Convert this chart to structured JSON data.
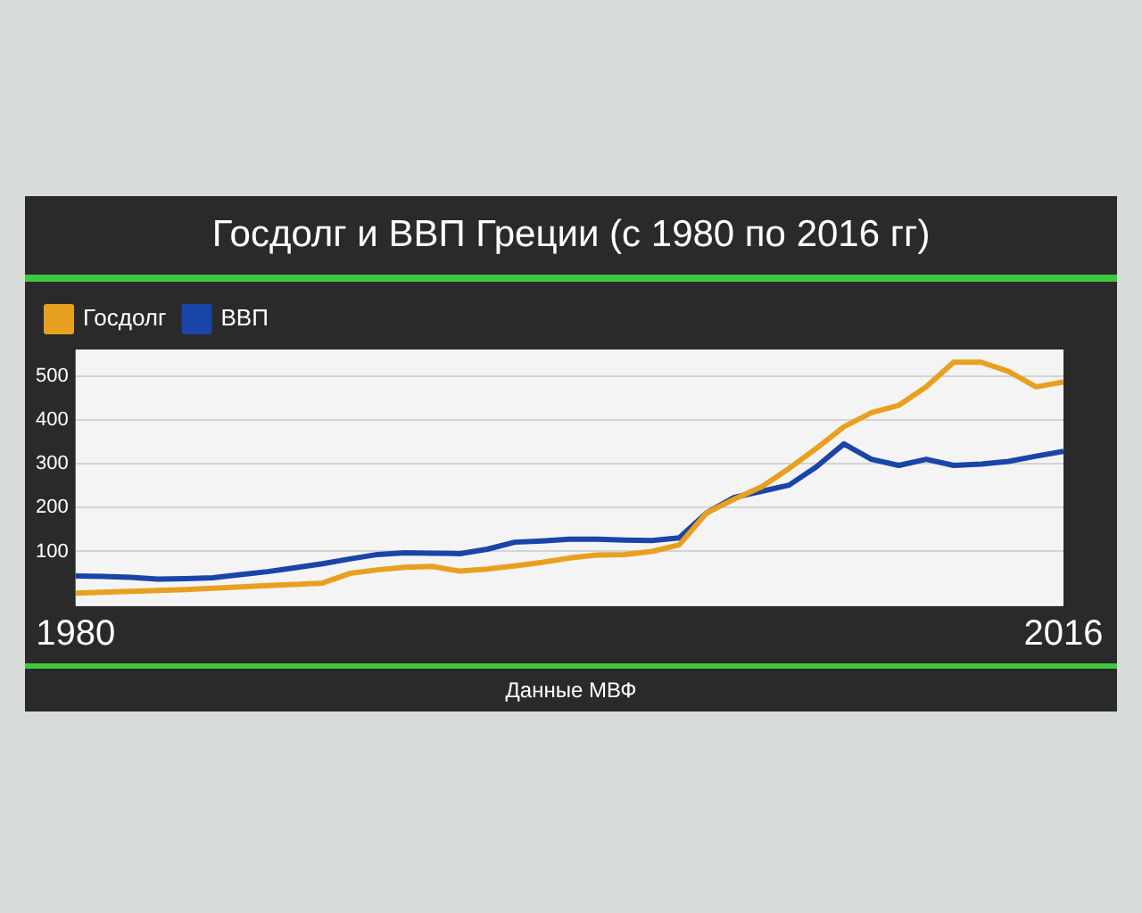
{
  "chart_data": {
    "type": "line",
    "title": "Госдолг и ВВП Греции (с 1980 по 2016 гг)",
    "annotations": [
      "Данные МВФ"
    ],
    "x": [
      1980,
      1981,
      1982,
      1983,
      1984,
      1985,
      1986,
      1987,
      1988,
      1989,
      1990,
      1991,
      1992,
      1993,
      1994,
      1995,
      1996,
      1997,
      1998,
      1999,
      2000,
      2001,
      2002,
      2003,
      2004,
      2005,
      2006,
      2007,
      2008,
      2009,
      2010,
      2011,
      2012,
      2013,
      2014,
      2015,
      2016
    ],
    "series": [
      {
        "name": "Госдолг",
        "color": "#e8a020",
        "values": [
          5,
          7,
          9,
          11,
          13,
          16,
          19,
          22,
          25,
          28,
          50,
          58,
          64,
          66,
          55,
          60,
          67,
          75,
          85,
          92,
          93,
          100,
          115,
          188,
          219,
          247,
          289,
          335,
          384,
          416,
          433,
          475,
          531,
          531,
          510,
          475,
          486
        ]
      },
      {
        "name": "ВВП",
        "color": "#1a45a8",
        "values": [
          44,
          43,
          41,
          37,
          38,
          40,
          47,
          54,
          63,
          72,
          83,
          93,
          97,
          96,
          95,
          105,
          121,
          124,
          128,
          128,
          126,
          125,
          131,
          188,
          223,
          237,
          251,
          293,
          345,
          310,
          296,
          310,
          296,
          299,
          305,
          317,
          328
        ]
      }
    ],
    "xlim": [
      1980,
      2016
    ],
    "xticks": [
      1980,
      2016
    ],
    "ylim": [
      -25,
      560
    ],
    "yticks": [
      100,
      200,
      300,
      400,
      500
    ],
    "grid": "y",
    "legend": "top left",
    "marker": "none",
    "line_style": "solid"
  }
}
